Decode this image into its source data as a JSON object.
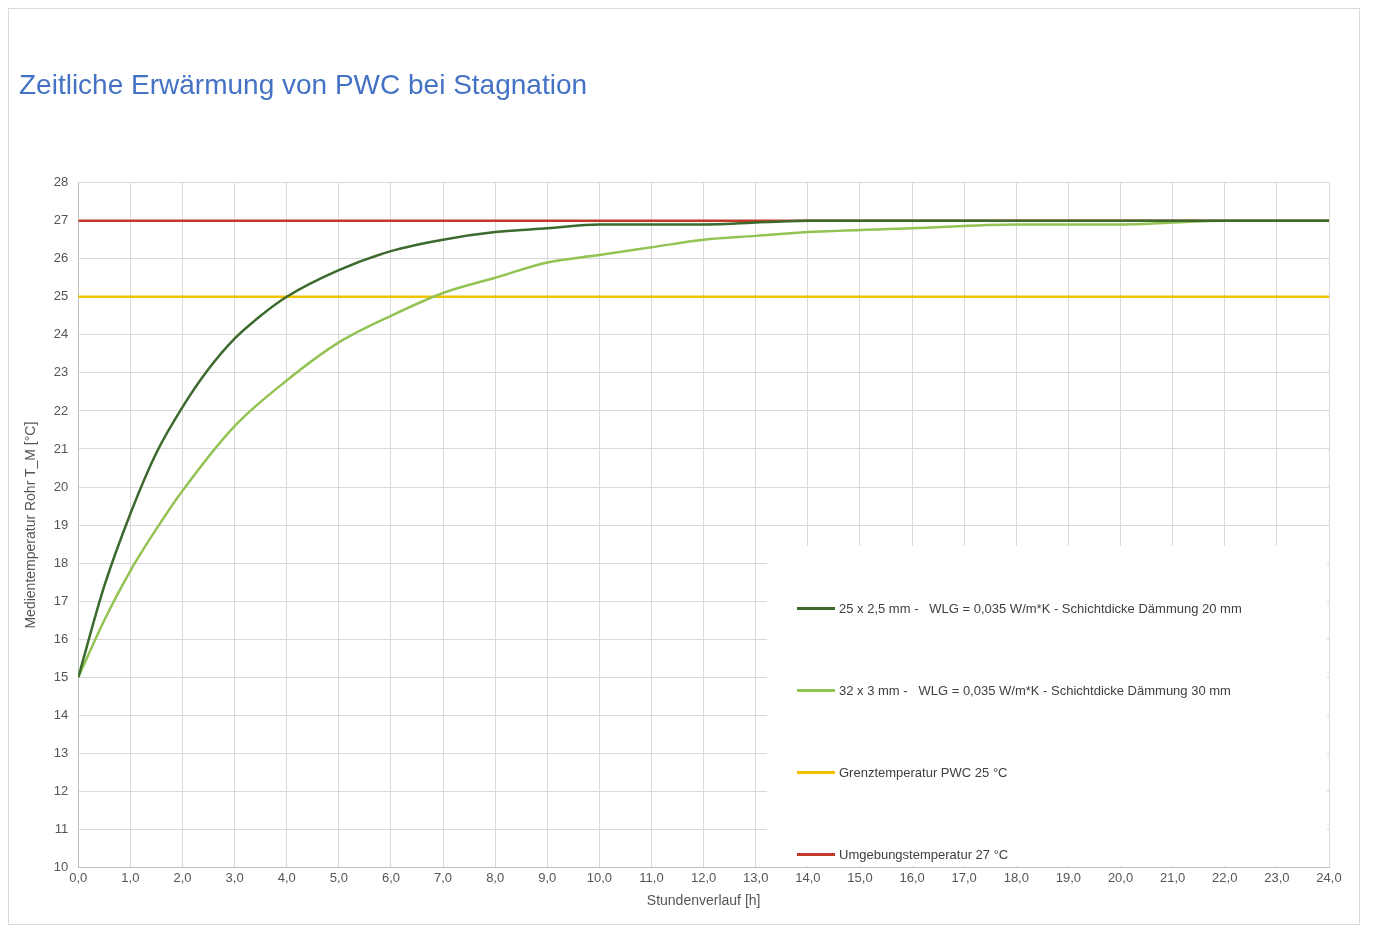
{
  "chart_data": {
    "type": "line",
    "title": "Zeitliche Erwärmung von PWC bei Stagnation",
    "xlabel": "Stundenverlauf [h]",
    "ylabel": "Medientemperatur Rohr T_M [°C]",
    "series": [
      {
        "name": "25 x 2,5 mm -   WLG = 0,035 W/m*K - Schichtdicke Dämmung 20 mm",
        "color": "#3b6a2c",
        "x": [
          0,
          0.5,
          1,
          1.5,
          2,
          2.5,
          3,
          3.5,
          4,
          5,
          6,
          7,
          8,
          9,
          10,
          12,
          14,
          16,
          20,
          24
        ],
        "values": [
          15,
          17.4,
          19.3,
          20.9,
          22.1,
          23.1,
          23.9,
          24.5,
          25,
          25.7,
          26.2,
          26.5,
          26.7,
          26.8,
          26.9,
          26.9,
          27,
          27,
          27,
          27
        ]
      },
      {
        "name": "32 x 3 mm -   WLG = 0,035 W/m*K - Schichtdicke Dämmung 30 mm",
        "color": "#92c353",
        "x": [
          0,
          0.5,
          1,
          1.5,
          2,
          3,
          4,
          5,
          6,
          7,
          8,
          9,
          10,
          11,
          12,
          13,
          14,
          16,
          18,
          20,
          22,
          24
        ],
        "values": [
          15,
          16.5,
          17.8,
          18.9,
          19.9,
          21.6,
          22.8,
          23.8,
          24.5,
          25.1,
          25.5,
          25.9,
          26.1,
          26.3,
          26.5,
          26.6,
          26.7,
          26.8,
          26.9,
          26.9,
          27,
          27
        ]
      },
      {
        "name": "Grenztemperatur PWC 25 °C",
        "color": "#f2c200",
        "x": [
          0,
          24
        ],
        "values": [
          25,
          25
        ]
      },
      {
        "name": "Umgebungstemperatur 27 °C",
        "color": "#c0392b",
        "x": [
          0,
          24
        ],
        "values": [
          27,
          27
        ]
      }
    ],
    "xlim": [
      0,
      24
    ],
    "xticks": [
      {
        "value": 0,
        "label": "0,0"
      },
      {
        "value": 1,
        "label": "1,0"
      },
      {
        "value": 2,
        "label": "2,0"
      },
      {
        "value": 3,
        "label": "3,0"
      },
      {
        "value": 4,
        "label": "4,0"
      },
      {
        "value": 5,
        "label": "5,0"
      },
      {
        "value": 6,
        "label": "6,0"
      },
      {
        "value": 7,
        "label": "7,0"
      },
      {
        "value": 8,
        "label": "8,0"
      },
      {
        "value": 9,
        "label": "9,0"
      },
      {
        "value": 10,
        "label": "10,0"
      },
      {
        "value": 11,
        "label": "11,0"
      },
      {
        "value": 12,
        "label": "12,0"
      },
      {
        "value": 13,
        "label": "13,0"
      },
      {
        "value": 14,
        "label": "14,0"
      },
      {
        "value": 15,
        "label": "15,0"
      },
      {
        "value": 16,
        "label": "16,0"
      },
      {
        "value": 17,
        "label": "17,0"
      },
      {
        "value": 18,
        "label": "18,0"
      },
      {
        "value": 19,
        "label": "19,0"
      },
      {
        "value": 20,
        "label": "20,0"
      },
      {
        "value": 21,
        "label": "21,0"
      },
      {
        "value": 22,
        "label": "22,0"
      },
      {
        "value": 23,
        "label": "23,0"
      },
      {
        "value": 24,
        "label": "24,0"
      }
    ],
    "ylim": [
      10,
      28
    ],
    "yticks": [
      10,
      11,
      12,
      13,
      14,
      15,
      16,
      17,
      18,
      19,
      20,
      21,
      22,
      23,
      24,
      25,
      26,
      27,
      28
    ],
    "grid": true,
    "legend": "bottom right",
    "marker": "none",
    "line_style": "solid"
  }
}
